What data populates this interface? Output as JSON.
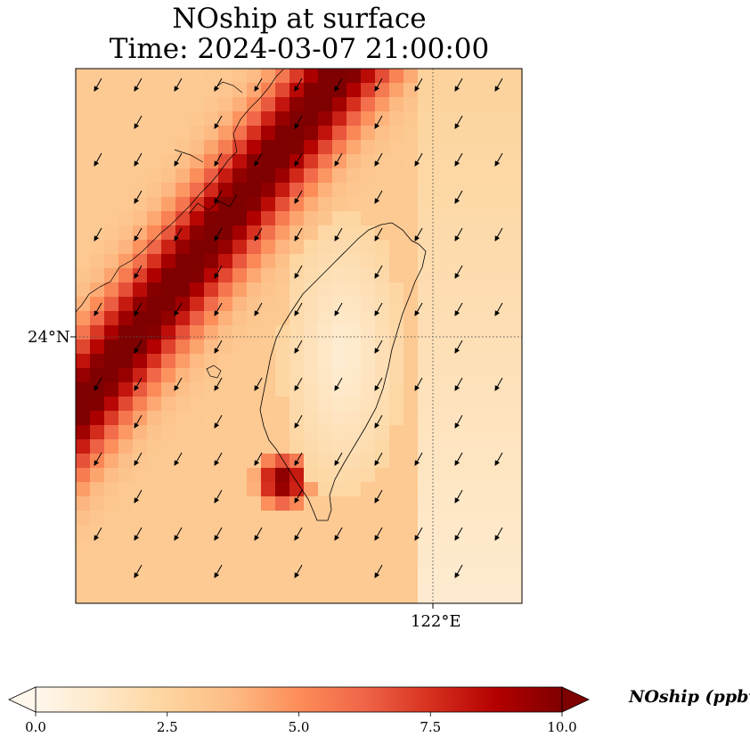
{
  "title": {
    "line1": "NOship at surface",
    "line2": "Time: 2024-03-07 21:00:00"
  },
  "axes": {
    "lat_label": "24°N",
    "lon_label": "122°E"
  },
  "colorbar": {
    "title": "NOship (ppbv)",
    "ticks": [
      "0.0",
      "2.5",
      "5.0",
      "7.5",
      "10.0"
    ],
    "min": 0,
    "max": 10,
    "extend": "both",
    "colormap": "OrRd",
    "colors": [
      "#fff7ec",
      "#fee8c8",
      "#fdd49e",
      "#fdbb84",
      "#fc8d59",
      "#ef6548",
      "#d7301f",
      "#b30000",
      "#7f0000"
    ]
  },
  "map": {
    "feature": "Taiwan coastline with ship-emission NO plume along Taiwan Strait",
    "wind_vectors": "northeasterly flow arrows",
    "gridlines": "dotted"
  }
}
